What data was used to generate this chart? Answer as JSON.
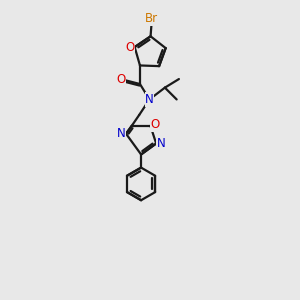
{
  "bg_color": "#e8e8e8",
  "bond_color": "#1a1a1a",
  "bond_width": 1.6,
  "atom_colors": {
    "Br": "#cc7700",
    "O": "#dd0000",
    "N": "#0000cc",
    "C": "#1a1a1a"
  },
  "font_size_atom": 8.5,
  "fig_width": 3.0,
  "fig_height": 3.0,
  "dpi": 100
}
